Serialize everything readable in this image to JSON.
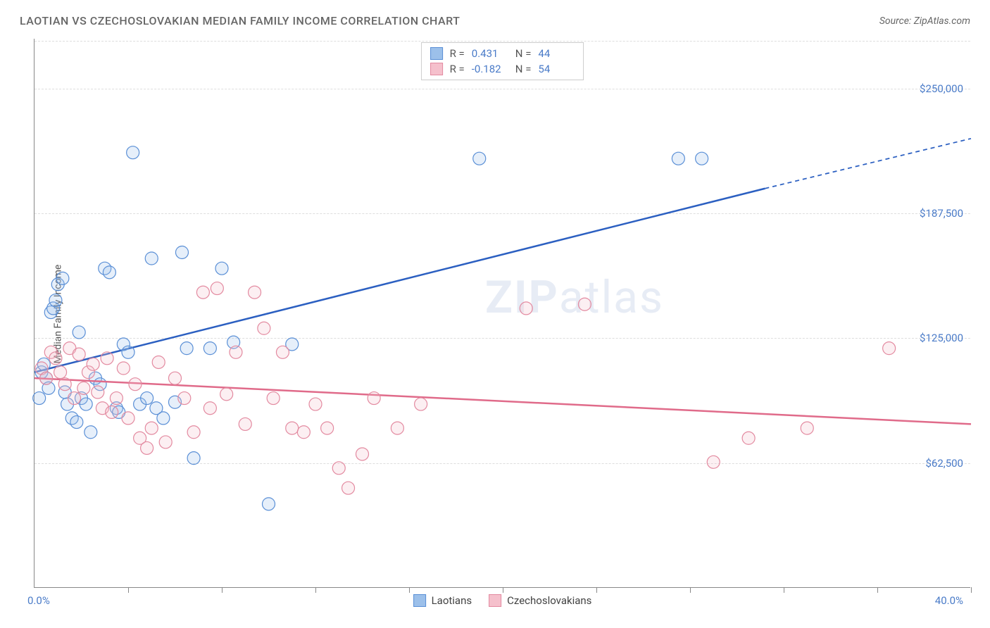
{
  "title": "LAOTIAN VS CZECHOSLOVAKIAN MEDIAN FAMILY INCOME CORRELATION CHART",
  "source": "Source: ZipAtlas.com",
  "watermark_a": "ZIP",
  "watermark_b": "atlas",
  "chart": {
    "type": "scatter",
    "background_color": "#ffffff",
    "grid_color": "#dddddd",
    "axis_color": "#888888",
    "y_label": "Median Family Income",
    "y_label_fontsize": 14,
    "x_label_min": "0.0%",
    "x_label_max": "40.0%",
    "xlim": [
      0,
      40
    ],
    "ylim": [
      0,
      275000
    ],
    "y_ticks": [
      62500,
      125000,
      187500,
      250000
    ],
    "y_tick_labels": [
      "$62,500",
      "$125,000",
      "$187,500",
      "$250,000"
    ],
    "x_tick_positions": [
      0,
      4,
      8,
      12,
      16,
      20,
      24,
      28,
      32,
      36,
      40
    ],
    "tick_label_color": "#4a7bc8",
    "marker_radius": 9,
    "marker_stroke_width": 1.2,
    "marker_fill_opacity": 0.25,
    "trend_line_width": 2.5,
    "series": [
      {
        "name": "Laotians",
        "marker_fill": "#9cc0ea",
        "marker_stroke": "#5a8fd6",
        "line_color": "#2b5fc1",
        "r": 0.431,
        "n": 44,
        "trend_start": [
          0,
          108000
        ],
        "trend_solid_end": [
          31.2,
          200000
        ],
        "trend_dash_end": [
          40,
          225000
        ],
        "points": [
          [
            0.3,
            108000
          ],
          [
            0.4,
            112000
          ],
          [
            0.5,
            105000
          ],
          [
            0.6,
            100000
          ],
          [
            0.7,
            138000
          ],
          [
            0.8,
            140000
          ],
          [
            0.9,
            144000
          ],
          [
            1.0,
            152000
          ],
          [
            1.2,
            155000
          ],
          [
            1.3,
            98000
          ],
          [
            1.4,
            92000
          ],
          [
            1.6,
            85000
          ],
          [
            1.8,
            83000
          ],
          [
            1.9,
            128000
          ],
          [
            2.0,
            95000
          ],
          [
            2.2,
            92000
          ],
          [
            2.4,
            78000
          ],
          [
            2.6,
            105000
          ],
          [
            2.8,
            102000
          ],
          [
            3.0,
            160000
          ],
          [
            3.2,
            158000
          ],
          [
            3.5,
            90000
          ],
          [
            3.6,
            88000
          ],
          [
            3.8,
            122000
          ],
          [
            4.0,
            118000
          ],
          [
            4.2,
            218000
          ],
          [
            4.5,
            92000
          ],
          [
            4.8,
            95000
          ],
          [
            5.0,
            165000
          ],
          [
            5.2,
            90000
          ],
          [
            5.5,
            85000
          ],
          [
            6.0,
            93000
          ],
          [
            6.3,
            168000
          ],
          [
            6.5,
            120000
          ],
          [
            6.8,
            65000
          ],
          [
            7.5,
            120000
          ],
          [
            8.0,
            160000
          ],
          [
            8.5,
            123000
          ],
          [
            10.0,
            42000
          ],
          [
            11.0,
            122000
          ],
          [
            19.0,
            215000
          ],
          [
            27.5,
            215000
          ],
          [
            28.5,
            215000
          ],
          [
            0.2,
            95000
          ]
        ]
      },
      {
        "name": "Czechoslovakians",
        "marker_fill": "#f5c0cc",
        "marker_stroke": "#e38aa0",
        "line_color": "#e06b8a",
        "r": -0.182,
        "n": 54,
        "trend_start": [
          0,
          105000
        ],
        "trend_solid_end": [
          40,
          82000
        ],
        "trend_dash_end": null,
        "points": [
          [
            0.3,
            110000
          ],
          [
            0.5,
            105000
          ],
          [
            0.7,
            118000
          ],
          [
            0.9,
            115000
          ],
          [
            1.1,
            108000
          ],
          [
            1.3,
            102000
          ],
          [
            1.5,
            120000
          ],
          [
            1.7,
            95000
          ],
          [
            1.9,
            117000
          ],
          [
            2.1,
            100000
          ],
          [
            2.3,
            108000
          ],
          [
            2.5,
            112000
          ],
          [
            2.7,
            98000
          ],
          [
            2.9,
            90000
          ],
          [
            3.1,
            115000
          ],
          [
            3.3,
            88000
          ],
          [
            3.5,
            95000
          ],
          [
            3.8,
            110000
          ],
          [
            4.0,
            85000
          ],
          [
            4.3,
            102000
          ],
          [
            4.5,
            75000
          ],
          [
            4.8,
            70000
          ],
          [
            5.0,
            80000
          ],
          [
            5.3,
            113000
          ],
          [
            5.6,
            73000
          ],
          [
            6.0,
            105000
          ],
          [
            6.4,
            95000
          ],
          [
            6.8,
            78000
          ],
          [
            7.2,
            148000
          ],
          [
            7.5,
            90000
          ],
          [
            7.8,
            150000
          ],
          [
            8.2,
            97000
          ],
          [
            8.6,
            118000
          ],
          [
            9.0,
            82000
          ],
          [
            9.4,
            148000
          ],
          [
            9.8,
            130000
          ],
          [
            10.2,
            95000
          ],
          [
            10.6,
            118000
          ],
          [
            11.0,
            80000
          ],
          [
            11.5,
            78000
          ],
          [
            12.0,
            92000
          ],
          [
            12.5,
            80000
          ],
          [
            13.0,
            60000
          ],
          [
            13.4,
            50000
          ],
          [
            14.0,
            67000
          ],
          [
            14.5,
            95000
          ],
          [
            15.5,
            80000
          ],
          [
            16.5,
            92000
          ],
          [
            21.0,
            140000
          ],
          [
            23.5,
            142000
          ],
          [
            29.0,
            63000
          ],
          [
            30.5,
            75000
          ],
          [
            33.0,
            80000
          ],
          [
            36.5,
            120000
          ]
        ]
      }
    ],
    "stats_box": {
      "border_color": "#cccccc",
      "value_color": "#4a7bc8",
      "label_color": "#555555"
    },
    "legend_labels": [
      "Laotians",
      "Czechoslovakians"
    ]
  }
}
